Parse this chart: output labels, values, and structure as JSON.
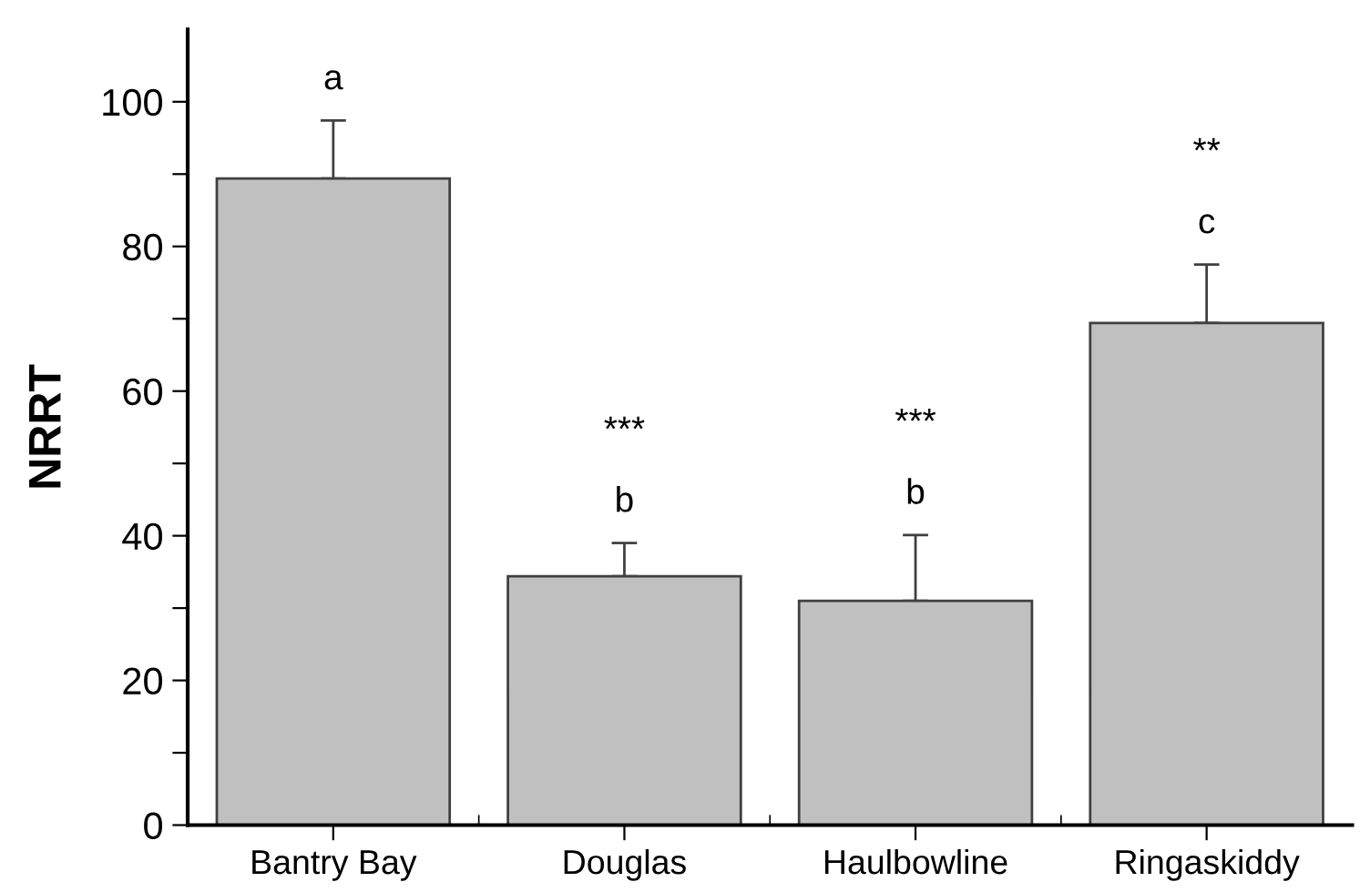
{
  "chart_data": {
    "type": "bar",
    "ylabel": "NRRT",
    "categories": [
      "Bantry Bay",
      "Douglas",
      "Haulbowline",
      "Ringaskiddy"
    ],
    "values": [
      89.4,
      34.4,
      31.0,
      69.4
    ],
    "errors": [
      [
        89.4,
        97.4
      ],
      [
        34.4,
        39.0
      ],
      [
        31.0,
        40.1
      ],
      [
        69.4,
        77.5
      ]
    ],
    "color": "#c0c0c0",
    "ylim": [
      0,
      110
    ],
    "yticks": [
      0,
      {
        "value": 10,
        "label": null
      },
      20,
      {
        "value": 30,
        "label": null
      },
      40,
      {
        "value": 50,
        "label": null
      },
      60,
      {
        "value": 70,
        "label": null
      },
      80,
      {
        "value": 90,
        "label": null
      },
      100
    ],
    "grid": false,
    "annotations": [
      "a",
      "b",
      "***",
      "b",
      "***",
      "c",
      "**"
    ]
  }
}
